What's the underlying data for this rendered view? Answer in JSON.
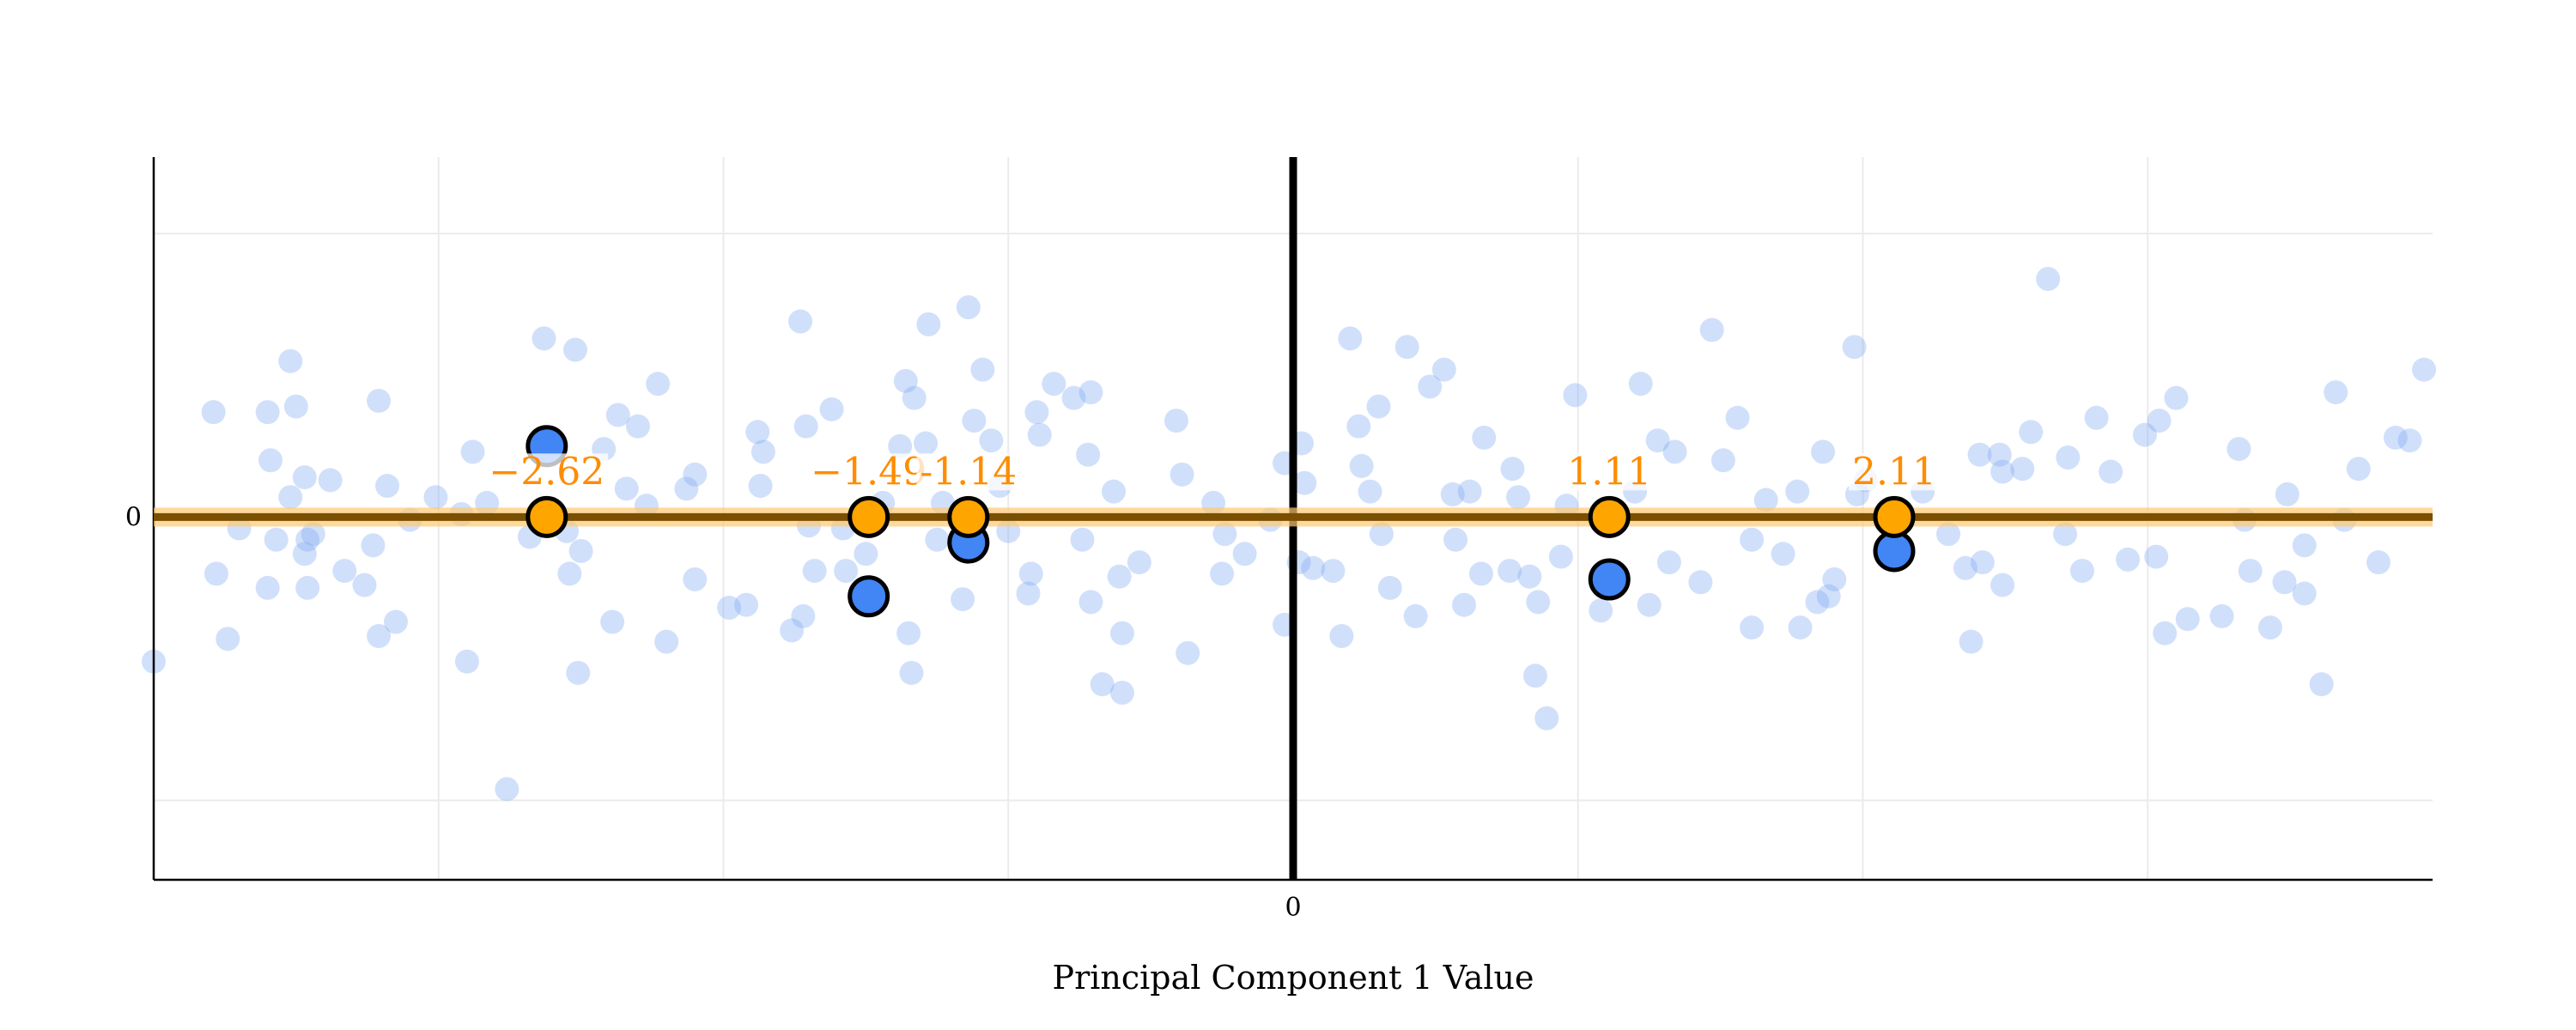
{
  "chart_data": {
    "type": "scatter",
    "title": "",
    "xlabel": "Principal Component 1 Value",
    "ylabel": "",
    "xlim": [
      -4,
      4
    ],
    "ylim": [
      -1.28,
      1.27
    ],
    "grid": true,
    "x_gridlines": [
      -3,
      -2,
      -1,
      1,
      2,
      3
    ],
    "y_gridlines": [
      -1,
      1
    ],
    "x_ticks": [
      {
        "value": 0,
        "label": "0"
      }
    ],
    "y_ticks": [
      {
        "value": 0,
        "label": "0"
      }
    ],
    "colors": {
      "background_points": "#7aa7f0",
      "highlight_points": "#4285f4",
      "projection_points": "#ffa500",
      "labels": "#ff8c00",
      "axis_line": "#7a4f00",
      "axis_halo": "#ffc870"
    },
    "background_points": [
      [
        -4.0,
        -0.51
      ],
      [
        -3.79,
        0.37
      ],
      [
        -3.74,
        -0.43
      ],
      [
        -3.78,
        -0.2
      ],
      [
        -3.7,
        -0.04
      ],
      [
        -3.6,
        0.37
      ],
      [
        -3.52,
        0.55
      ],
      [
        -3.5,
        0.39
      ],
      [
        -3.59,
        0.2
      ],
      [
        -3.52,
        0.07
      ],
      [
        -3.47,
        0.14
      ],
      [
        -3.38,
        0.13
      ],
      [
        -3.57,
        -0.08
      ],
      [
        -3.6,
        -0.25
      ],
      [
        -3.46,
        -0.08
      ],
      [
        -3.44,
        -0.06
      ],
      [
        -3.47,
        -0.13
      ],
      [
        -3.46,
        -0.25
      ],
      [
        -3.33,
        -0.19
      ],
      [
        -3.26,
        -0.24
      ],
      [
        -3.21,
        -0.42
      ],
      [
        -3.15,
        -0.37
      ],
      [
        -3.23,
        -0.1
      ],
      [
        -3.21,
        0.41
      ],
      [
        -3.18,
        0.11
      ],
      [
        -3.1,
        -0.01
      ],
      [
        -3.01,
        0.07
      ],
      [
        -2.9,
        -0.51
      ],
      [
        -2.92,
        0.01
      ],
      [
        -2.88,
        0.23
      ],
      [
        -2.83,
        0.05
      ],
      [
        -2.76,
        -0.96
      ],
      [
        -2.63,
        0.63
      ],
      [
        -2.68,
        -0.07
      ],
      [
        -2.55,
        -0.05
      ],
      [
        -2.52,
        0.59
      ],
      [
        -2.5,
        -0.12
      ],
      [
        -2.54,
        -0.2
      ],
      [
        -2.51,
        -0.55
      ],
      [
        -2.39,
        -0.37
      ],
      [
        -2.37,
        0.36
      ],
      [
        -2.34,
        0.1
      ],
      [
        -2.3,
        0.32
      ],
      [
        -2.42,
        0.24
      ],
      [
        -2.27,
        0.04
      ],
      [
        -2.23,
        0.47
      ],
      [
        -2.2,
        -0.44
      ],
      [
        -2.13,
        0.1
      ],
      [
        -2.1,
        0.15
      ],
      [
        -2.1,
        -0.22
      ],
      [
        -1.98,
        -0.32
      ],
      [
        -1.92,
        -0.31
      ],
      [
        -1.87,
        0.11
      ],
      [
        -1.86,
        0.23
      ],
      [
        -1.88,
        0.3
      ],
      [
        -1.76,
        -0.4
      ],
      [
        -1.73,
        0.69
      ],
      [
        -1.71,
        0.32
      ],
      [
        -1.7,
        -0.03
      ],
      [
        -1.68,
        -0.19
      ],
      [
        -1.72,
        -0.35
      ],
      [
        -1.62,
        0.38
      ],
      [
        -1.58,
        -0.04
      ],
      [
        -1.57,
        -0.19
      ],
      [
        -1.5,
        -0.13
      ],
      [
        -1.44,
        0.05
      ],
      [
        -1.38,
        0.25
      ],
      [
        -1.36,
        0.48
      ],
      [
        -1.33,
        0.42
      ],
      [
        -1.35,
        -0.41
      ],
      [
        -1.34,
        -0.55
      ],
      [
        -1.28,
        0.68
      ],
      [
        -1.29,
        0.26
      ],
      [
        -1.25,
        -0.08
      ],
      [
        -1.23,
        0.05
      ],
      [
        -1.16,
        -0.29
      ],
      [
        -1.14,
        0.74
      ],
      [
        -1.12,
        0.34
      ],
      [
        -1.09,
        0.52
      ],
      [
        -1.06,
        0.27
      ],
      [
        -1.03,
        0.11
      ],
      [
        -1.0,
        -0.05
      ],
      [
        -0.93,
        -0.27
      ],
      [
        -0.92,
        -0.2
      ],
      [
        -0.89,
        0.29
      ],
      [
        -0.9,
        0.37
      ],
      [
        -0.84,
        0.47
      ],
      [
        -0.77,
        0.42
      ],
      [
        -0.71,
        0.44
      ],
      [
        -0.72,
        0.22
      ],
      [
        -0.74,
        -0.08
      ],
      [
        -0.71,
        -0.3
      ],
      [
        -0.67,
        -0.59
      ],
      [
        -0.6,
        -0.62
      ],
      [
        -0.6,
        -0.41
      ],
      [
        -0.61,
        -0.21
      ],
      [
        -0.63,
        0.09
      ],
      [
        -0.54,
        -0.16
      ],
      [
        -0.41,
        0.34
      ],
      [
        -0.39,
        0.15
      ],
      [
        -0.37,
        -0.48
      ],
      [
        -0.28,
        0.05
      ],
      [
        -0.25,
        -0.2
      ],
      [
        -0.24,
        -0.06
      ],
      [
        -0.17,
        -0.13
      ],
      [
        -0.08,
        -0.01
      ],
      [
        -0.03,
        -0.38
      ],
      [
        -0.03,
        0.19
      ],
      [
        0.03,
        0.26
      ],
      [
        0.04,
        0.12
      ],
      [
        0.02,
        -0.16
      ],
      [
        0.07,
        -0.18
      ],
      [
        0.14,
        -0.19
      ],
      [
        0.17,
        -0.42
      ],
      [
        0.2,
        0.63
      ],
      [
        0.23,
        0.32
      ],
      [
        0.24,
        0.18
      ],
      [
        0.27,
        0.09
      ],
      [
        0.3,
        0.39
      ],
      [
        0.31,
        -0.06
      ],
      [
        0.34,
        -0.25
      ],
      [
        0.4,
        0.6
      ],
      [
        0.43,
        -0.35
      ],
      [
        0.48,
        0.46
      ],
      [
        0.53,
        0.52
      ],
      [
        0.56,
        0.08
      ],
      [
        0.57,
        -0.08
      ],
      [
        0.6,
        -0.31
      ],
      [
        0.62,
        0.09
      ],
      [
        0.66,
        -0.2
      ],
      [
        0.67,
        0.28
      ],
      [
        0.76,
        -0.19
      ],
      [
        0.77,
        0.17
      ],
      [
        0.79,
        0.07
      ],
      [
        0.83,
        -0.21
      ],
      [
        0.86,
        -0.3
      ],
      [
        0.89,
        -0.71
      ],
      [
        0.85,
        -0.56
      ],
      [
        0.94,
        -0.14
      ],
      [
        0.99,
        0.43
      ],
      [
        0.96,
        0.04
      ],
      [
        1.08,
        -0.33
      ],
      [
        1.2,
        0.09
      ],
      [
        1.22,
        0.47
      ],
      [
        1.25,
        -0.31
      ],
      [
        1.28,
        0.27
      ],
      [
        1.32,
        -0.16
      ],
      [
        1.34,
        0.23
      ],
      [
        1.43,
        -0.23
      ],
      [
        1.47,
        0.66
      ],
      [
        1.51,
        0.2
      ],
      [
        1.56,
        0.35
      ],
      [
        1.61,
        -0.39
      ],
      [
        1.61,
        -0.08
      ],
      [
        1.66,
        0.06
      ],
      [
        1.72,
        -0.13
      ],
      [
        1.78,
        -0.39
      ],
      [
        1.77,
        0.09
      ],
      [
        1.84,
        -0.3
      ],
      [
        1.86,
        0.23
      ],
      [
        1.88,
        -0.28
      ],
      [
        1.9,
        -0.22
      ],
      [
        1.97,
        0.6
      ],
      [
        1.98,
        0.08
      ],
      [
        2.01,
        0.13
      ],
      [
        2.21,
        0.09
      ],
      [
        2.3,
        -0.06
      ],
      [
        2.36,
        -0.18
      ],
      [
        2.38,
        -0.44
      ],
      [
        2.41,
        0.22
      ],
      [
        2.42,
        -0.16
      ],
      [
        2.48,
        0.22
      ],
      [
        2.49,
        0.16
      ],
      [
        2.49,
        -0.24
      ],
      [
        2.56,
        0.17
      ],
      [
        2.59,
        0.3
      ],
      [
        2.65,
        0.84
      ],
      [
        2.71,
        -0.06
      ],
      [
        2.72,
        0.21
      ],
      [
        2.77,
        -0.19
      ],
      [
        2.82,
        0.35
      ],
      [
        2.87,
        0.16
      ],
      [
        2.93,
        -0.15
      ],
      [
        2.99,
        0.29
      ],
      [
        3.03,
        -0.14
      ],
      [
        3.06,
        -0.41
      ],
      [
        3.04,
        0.34
      ],
      [
        3.1,
        0.42
      ],
      [
        3.14,
        -0.36
      ],
      [
        3.26,
        -0.35
      ],
      [
        3.32,
        0.24
      ],
      [
        3.34,
        -0.01
      ],
      [
        3.36,
        -0.19
      ],
      [
        3.43,
        -0.39
      ],
      [
        3.49,
        0.08
      ],
      [
        3.55,
        -0.1
      ],
      [
        3.55,
        -0.27
      ],
      [
        3.48,
        -0.23
      ],
      [
        3.61,
        -0.59
      ],
      [
        3.66,
        0.44
      ],
      [
        3.69,
        -0.01
      ],
      [
        3.74,
        0.17
      ],
      [
        3.81,
        -0.16
      ],
      [
        3.87,
        0.28
      ],
      [
        3.92,
        0.27
      ],
      [
        3.97,
        0.52
      ]
    ],
    "highlighted": [
      {
        "x": -2.62,
        "y": 0.25,
        "projection": -2.62,
        "label": "−2.62"
      },
      {
        "x": -1.49,
        "y": -0.28,
        "projection": -1.49,
        "label": "−1.49"
      },
      {
        "x": -1.14,
        "y": -0.09,
        "projection": -1.14,
        "label": "-1.14"
      },
      {
        "x": 1.11,
        "y": -0.22,
        "projection": 1.11,
        "label": "1.11"
      },
      {
        "x": 2.11,
        "y": -0.12,
        "projection": 2.11,
        "label": "2.11"
      }
    ]
  }
}
